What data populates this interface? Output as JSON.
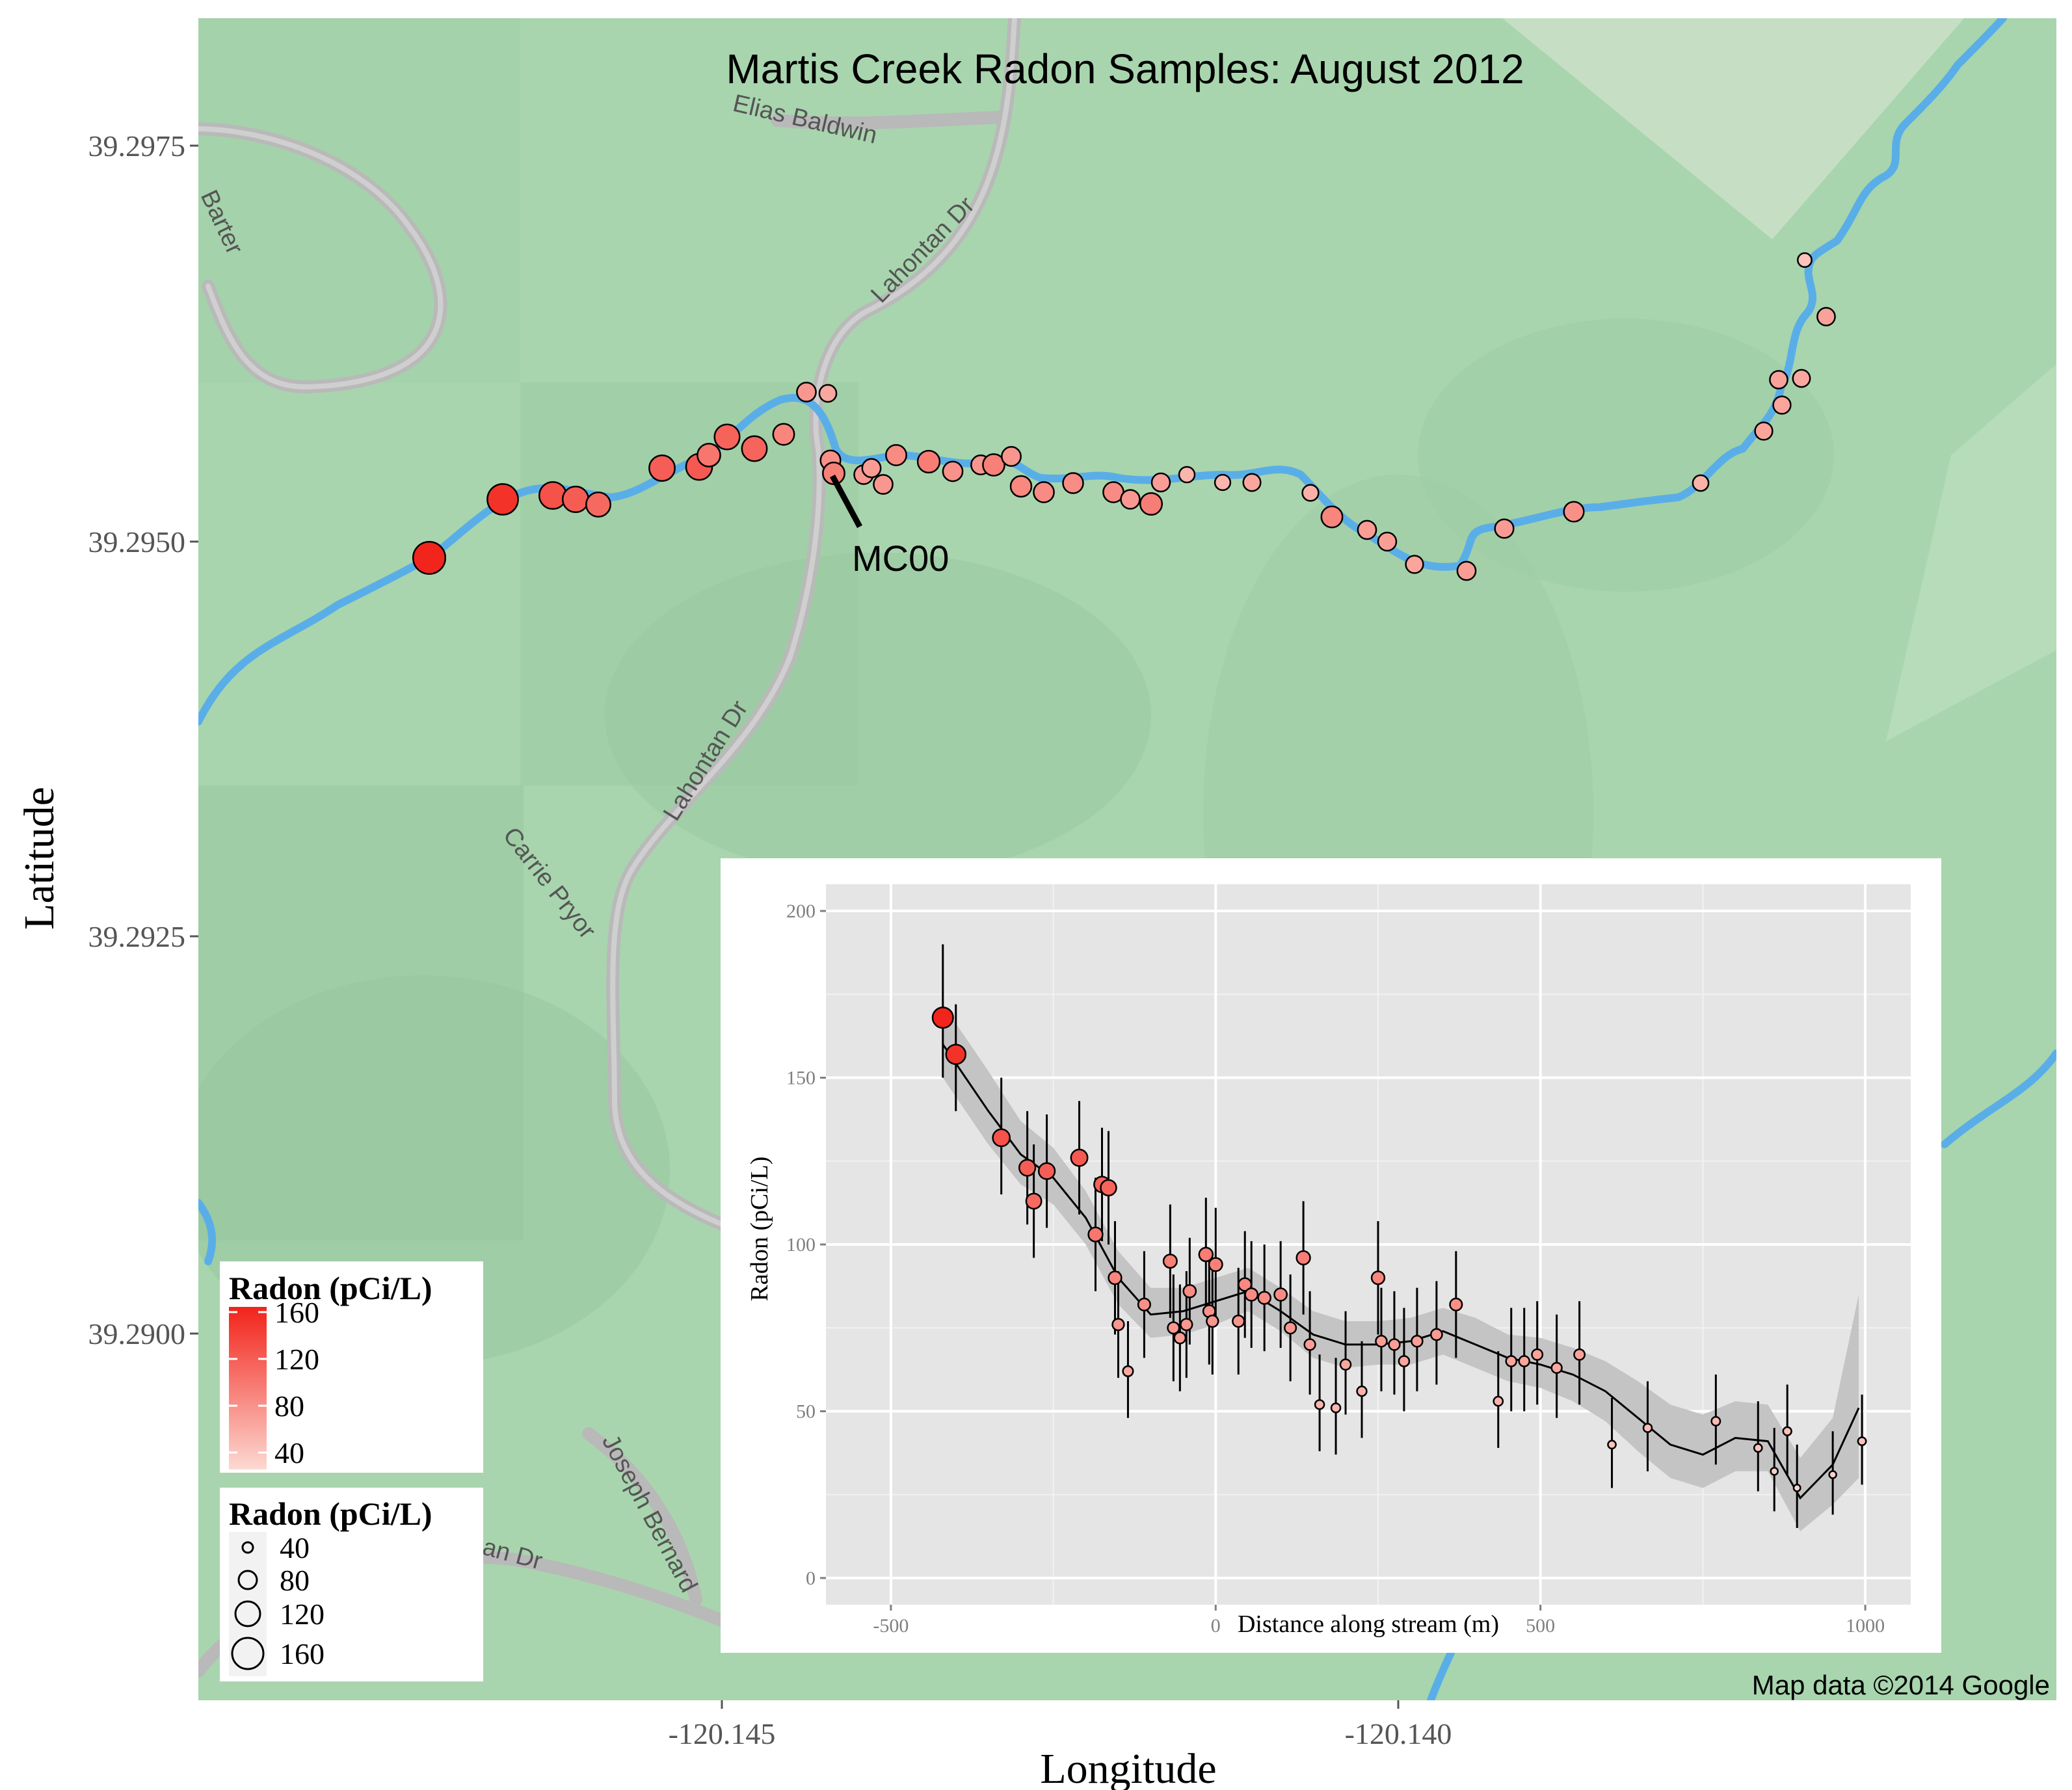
{
  "map": {
    "title": "Martis Creek Radon Samples: August 2012",
    "credit": "Map data ©2014 Google",
    "xlabel": "Longitude",
    "ylabel": "Latitude",
    "x_ticks": [
      "-120.145",
      "-120.140"
    ],
    "y_ticks": [
      "39.2975",
      "39.2950",
      "39.2925",
      "39.2900"
    ],
    "x_tick_values": [
      -120.145,
      -120.14
    ],
    "y_tick_values": [
      39.2975,
      39.295,
      39.2925,
      39.29
    ],
    "annotation": "MC00",
    "road_labels": [
      "Elias Baldwin",
      "Lahontan Dr",
      "Barter",
      "Lahontan Dr",
      "Carrie Pryor",
      "Joseph Bernard",
      "an Dr"
    ],
    "colors": {
      "land": "#a8d5ae",
      "stream": "#5aaee8",
      "road": "#b9b9b9",
      "high_radon": "#f2231a",
      "low_radon": "#fbd3cc"
    }
  },
  "legend_color": {
    "title": "Radon (pCi/L)",
    "labels": [
      "160",
      "120",
      "80",
      "40"
    ]
  },
  "legend_size": {
    "title": "Radon (pCi/L)",
    "labels": [
      "40",
      "80",
      "120",
      "160"
    ]
  },
  "chart_data": {
    "type": "scatter",
    "title": "",
    "xlabel": "Distance along stream (m)",
    "ylabel": "Radon (pCi/L)",
    "xlim": [
      -600,
      1070
    ],
    "ylim": [
      -8,
      208
    ],
    "x_ticks": [
      -500,
      0,
      500,
      1000
    ],
    "y_ticks": [
      0,
      50,
      100,
      150,
      200
    ],
    "grid": true,
    "smooth_line": true,
    "confidence_band": true,
    "points": [
      {
        "x": -420,
        "y": 168,
        "lo": 150,
        "hi": 190
      },
      {
        "x": -400,
        "y": 157,
        "lo": 140,
        "hi": 172
      },
      {
        "x": -330,
        "y": 132,
        "lo": 115,
        "hi": 150
      },
      {
        "x": -290,
        "y": 123,
        "lo": 106,
        "hi": 140
      },
      {
        "x": -280,
        "y": 113,
        "lo": 96,
        "hi": 130
      },
      {
        "x": -260,
        "y": 122,
        "lo": 105,
        "hi": 139
      },
      {
        "x": -210,
        "y": 126,
        "lo": 109,
        "hi": 143
      },
      {
        "x": -185,
        "y": 103,
        "lo": 86,
        "hi": 120
      },
      {
        "x": -175,
        "y": 118,
        "lo": 101,
        "hi": 135
      },
      {
        "x": -165,
        "y": 117,
        "lo": 100,
        "hi": 134
      },
      {
        "x": -155,
        "y": 90,
        "lo": 73,
        "hi": 107
      },
      {
        "x": -150,
        "y": 76,
        "lo": 60,
        "hi": 92
      },
      {
        "x": -135,
        "y": 62,
        "lo": 48,
        "hi": 77
      },
      {
        "x": -110,
        "y": 82,
        "lo": 66,
        "hi": 98
      },
      {
        "x": -70,
        "y": 95,
        "lo": 78,
        "hi": 112
      },
      {
        "x": -65,
        "y": 75,
        "lo": 59,
        "hi": 91
      },
      {
        "x": -55,
        "y": 72,
        "lo": 56,
        "hi": 88
      },
      {
        "x": -45,
        "y": 76,
        "lo": 60,
        "hi": 92
      },
      {
        "x": -40,
        "y": 86,
        "lo": 70,
        "hi": 102
      },
      {
        "x": -15,
        "y": 97,
        "lo": 80,
        "hi": 114
      },
      {
        "x": -10,
        "y": 80,
        "lo": 64,
        "hi": 96
      },
      {
        "x": -5,
        "y": 77,
        "lo": 61,
        "hi": 93
      },
      {
        "x": 0,
        "y": 94,
        "lo": 77,
        "hi": 111
      },
      {
        "x": 35,
        "y": 77,
        "lo": 61,
        "hi": 93
      },
      {
        "x": 45,
        "y": 88,
        "lo": 72,
        "hi": 104
      },
      {
        "x": 55,
        "y": 85,
        "lo": 69,
        "hi": 101
      },
      {
        "x": 75,
        "y": 84,
        "lo": 68,
        "hi": 100
      },
      {
        "x": 100,
        "y": 85,
        "lo": 69,
        "hi": 101
      },
      {
        "x": 115,
        "y": 75,
        "lo": 59,
        "hi": 91
      },
      {
        "x": 135,
        "y": 96,
        "lo": 79,
        "hi": 113
      },
      {
        "x": 145,
        "y": 70,
        "lo": 55,
        "hi": 86
      },
      {
        "x": 160,
        "y": 52,
        "lo": 38,
        "hi": 67
      },
      {
        "x": 185,
        "y": 51,
        "lo": 37,
        "hi": 66
      },
      {
        "x": 200,
        "y": 64,
        "lo": 49,
        "hi": 80
      },
      {
        "x": 225,
        "y": 56,
        "lo": 42,
        "hi": 71
      },
      {
        "x": 250,
        "y": 90,
        "lo": 73,
        "hi": 107
      },
      {
        "x": 255,
        "y": 71,
        "lo": 56,
        "hi": 87
      },
      {
        "x": 275,
        "y": 70,
        "lo": 55,
        "hi": 86
      },
      {
        "x": 290,
        "y": 65,
        "lo": 50,
        "hi": 81
      },
      {
        "x": 310,
        "y": 71,
        "lo": 56,
        "hi": 87
      },
      {
        "x": 340,
        "y": 73,
        "lo": 58,
        "hi": 89
      },
      {
        "x": 370,
        "y": 82,
        "lo": 66,
        "hi": 98
      },
      {
        "x": 435,
        "y": 53,
        "lo": 39,
        "hi": 68
      },
      {
        "x": 455,
        "y": 65,
        "lo": 50,
        "hi": 81
      },
      {
        "x": 475,
        "y": 65,
        "lo": 50,
        "hi": 81
      },
      {
        "x": 495,
        "y": 67,
        "lo": 52,
        "hi": 83
      },
      {
        "x": 525,
        "y": 63,
        "lo": 48,
        "hi": 79
      },
      {
        "x": 560,
        "y": 67,
        "lo": 52,
        "hi": 83
      },
      {
        "x": 610,
        "y": 40,
        "lo": 27,
        "hi": 54
      },
      {
        "x": 665,
        "y": 45,
        "lo": 32,
        "hi": 59
      },
      {
        "x": 770,
        "y": 47,
        "lo": 34,
        "hi": 61
      },
      {
        "x": 835,
        "y": 39,
        "lo": 26,
        "hi": 53
      },
      {
        "x": 860,
        "y": 32,
        "lo": 20,
        "hi": 45
      },
      {
        "x": 880,
        "y": 44,
        "lo": 31,
        "hi": 58
      },
      {
        "x": 895,
        "y": 27,
        "lo": 15,
        "hi": 40
      },
      {
        "x": 950,
        "y": 31,
        "lo": 19,
        "hi": 44
      },
      {
        "x": 995,
        "y": 41,
        "lo": 28,
        "hi": 55
      }
    ],
    "smooth": [
      {
        "x": -420,
        "y": 160,
        "lo": 150,
        "hi": 172
      },
      {
        "x": -350,
        "y": 140,
        "lo": 130,
        "hi": 152
      },
      {
        "x": -300,
        "y": 127,
        "lo": 118,
        "hi": 137
      },
      {
        "x": -250,
        "y": 120,
        "lo": 112,
        "hi": 129
      },
      {
        "x": -200,
        "y": 108,
        "lo": 100,
        "hi": 116
      },
      {
        "x": -150,
        "y": 90,
        "lo": 82,
        "hi": 98
      },
      {
        "x": -100,
        "y": 79,
        "lo": 72,
        "hi": 87
      },
      {
        "x": -50,
        "y": 80,
        "lo": 73,
        "hi": 87
      },
      {
        "x": 0,
        "y": 83,
        "lo": 76,
        "hi": 90
      },
      {
        "x": 50,
        "y": 86,
        "lo": 80,
        "hi": 93
      },
      {
        "x": 100,
        "y": 80,
        "lo": 74,
        "hi": 87
      },
      {
        "x": 150,
        "y": 73,
        "lo": 66,
        "hi": 80
      },
      {
        "x": 200,
        "y": 70,
        "lo": 63,
        "hi": 77
      },
      {
        "x": 250,
        "y": 70,
        "lo": 64,
        "hi": 77
      },
      {
        "x": 300,
        "y": 71,
        "lo": 64,
        "hi": 78
      },
      {
        "x": 350,
        "y": 74,
        "lo": 67,
        "hi": 81
      },
      {
        "x": 400,
        "y": 70,
        "lo": 63,
        "hi": 78
      },
      {
        "x": 450,
        "y": 66,
        "lo": 59,
        "hi": 73
      },
      {
        "x": 500,
        "y": 64,
        "lo": 57,
        "hi": 72
      },
      {
        "x": 550,
        "y": 61,
        "lo": 53,
        "hi": 69
      },
      {
        "x": 600,
        "y": 56,
        "lo": 47,
        "hi": 65
      },
      {
        "x": 650,
        "y": 48,
        "lo": 38,
        "hi": 59
      },
      {
        "x": 700,
        "y": 40,
        "lo": 30,
        "hi": 52
      },
      {
        "x": 750,
        "y": 37,
        "lo": 27,
        "hi": 49
      },
      {
        "x": 800,
        "y": 42,
        "lo": 32,
        "hi": 53
      },
      {
        "x": 850,
        "y": 41,
        "lo": 32,
        "hi": 52
      },
      {
        "x": 900,
        "y": 24,
        "lo": 14,
        "hi": 36
      },
      {
        "x": 950,
        "y": 34,
        "lo": 22,
        "hi": 48
      },
      {
        "x": 990,
        "y": 51,
        "lo": 30,
        "hi": 85
      }
    ]
  }
}
